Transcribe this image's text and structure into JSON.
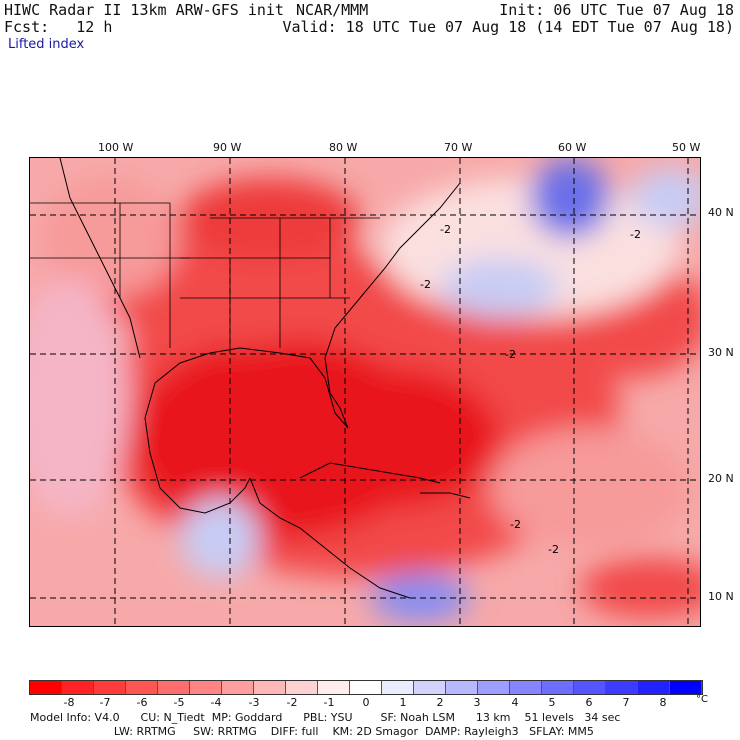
{
  "header": {
    "left_line1": "HIWC Radar II 13km ARW-GFS init",
    "left_line2": "Fcst:   12 h",
    "variable": "Lifted index",
    "center": "NCAR/MMM",
    "init": "Init: 06 UTC Tue 07 Aug 18",
    "valid": "Valid: 18 UTC Tue 07 Aug 18 (14 EDT Tue 07 Aug 18)"
  },
  "map": {
    "lon_labels": [
      "100 W",
      "90 W",
      "80 W",
      "70 W",
      "60 W",
      "50 W"
    ],
    "lat_labels": [
      "40 N",
      "30 N",
      "20 N",
      "10 N"
    ],
    "contour_label": "-2",
    "colors": {
      "deep_red": "#e8141a",
      "red": "#f24a4a",
      "light_red": "#f79a9a",
      "pale": "#fbe0e0",
      "light_blue": "#c8ccf5",
      "blue": "#6a70e8"
    }
  },
  "legend": {
    "ticks": [
      "-8",
      "-7",
      "-6",
      "-5",
      "-4",
      "-3",
      "-2",
      "-1",
      "0",
      "1",
      "2",
      "3",
      "4",
      "5",
      "6",
      "7",
      "8"
    ],
    "unit": "°C",
    "colors": [
      "#ff0000",
      "#ff2222",
      "#ff3c3c",
      "#ff5555",
      "#ff6d6d",
      "#ff8585",
      "#ff9e9e",
      "#ffb8b8",
      "#ffd2d2",
      "#ffecec",
      "#ffffff",
      "#ececff",
      "#d2d2ff",
      "#b8b8ff",
      "#9e9eff",
      "#8585ff",
      "#6d6dff",
      "#5555ff",
      "#3c3cff",
      "#2222ff",
      "#0000ff"
    ]
  },
  "footer": {
    "line1": "Model Info: V4.0      CU: N_Tiedt  MP: Goddard      PBL: YSU        SF: Noah LSM      13 km    51 levels   34 sec",
    "line2": "                        LW: RRTMG     SW: RRTMG    DIFF: full    KM: 2D Smagor  DAMP: Rayleigh3   SFLAY: MM5"
  }
}
